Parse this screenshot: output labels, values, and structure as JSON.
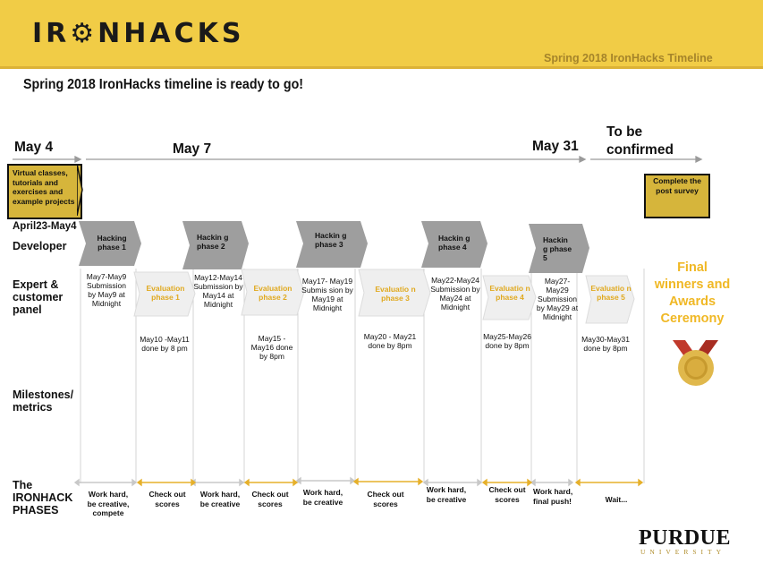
{
  "banner": {
    "logo": "IR⚙NHACKS",
    "right_title": "Spring 2018 IronHacks Timeline"
  },
  "headline": "Spring 2018 IronHacks timeline is ready to go!",
  "dates": {
    "d1": "May 4",
    "d2": "May 7",
    "d3": "May 31",
    "d4a": "To be",
    "d4b": "confirmed"
  },
  "intro_box": "Virtual classes, tutorials and exercises and example projects",
  "survey_box": "Complete the post survey",
  "rows": {
    "april": "April23-May4",
    "developer": "Developer",
    "expert": "Expert & customer panel",
    "milestones": "Milestones/ metrics",
    "phases": "The IRONHACK PHASES"
  },
  "hacking": [
    {
      "label": "Hacking phase 1"
    },
    {
      "label": "Hackin g phase 2"
    },
    {
      "label": "Hackin g phase 3"
    },
    {
      "label": "Hackin g phase 4"
    },
    {
      "label": "Hackin g phase 5"
    }
  ],
  "evaluation": [
    {
      "label": "Evaluation phase 1"
    },
    {
      "label": "Evaluation phase 2"
    },
    {
      "label": "Evaluatio n phase 3"
    },
    {
      "label": "Evaluatio n phase 4"
    },
    {
      "label": "Evaluatio n phase 5"
    }
  ],
  "submissions": [
    "May7-May9 Submission by May9 at Midnight",
    "May12-May14 Submission by May14 at Midnight",
    "May17- May19 Submis sion by May19 at Midnight",
    "May22-May24 Submission by May24 at Midnight",
    "May27- May29 Submission by May29 at Midnight"
  ],
  "evals_done": [
    "May10 -May11 done by 8 pm",
    "May15 - May16 done by 8pm",
    "May20 - May21 done by 8pm",
    "May25-May26 done by 8pm",
    "May30-May31 done by 8pm"
  ],
  "bottom": [
    "Work hard, be creative, compete",
    "Check out scores",
    "Work hard, be creative",
    "Check out scores",
    "Work hard, be creative",
    "Check out scores",
    "Work hard, be creative",
    "Check out scores",
    "Work hard, final push!",
    "Wait..."
  ],
  "final": "Final winners and Awards Ceremony",
  "footer": {
    "purdue": "PURDUE",
    "university": "UNIVERSITY"
  },
  "colors": {
    "banner": "#f1cc46",
    "accent": "#e0a91f",
    "grey_chevron": "#9e9e9e",
    "light_chevron": "#efefef"
  }
}
